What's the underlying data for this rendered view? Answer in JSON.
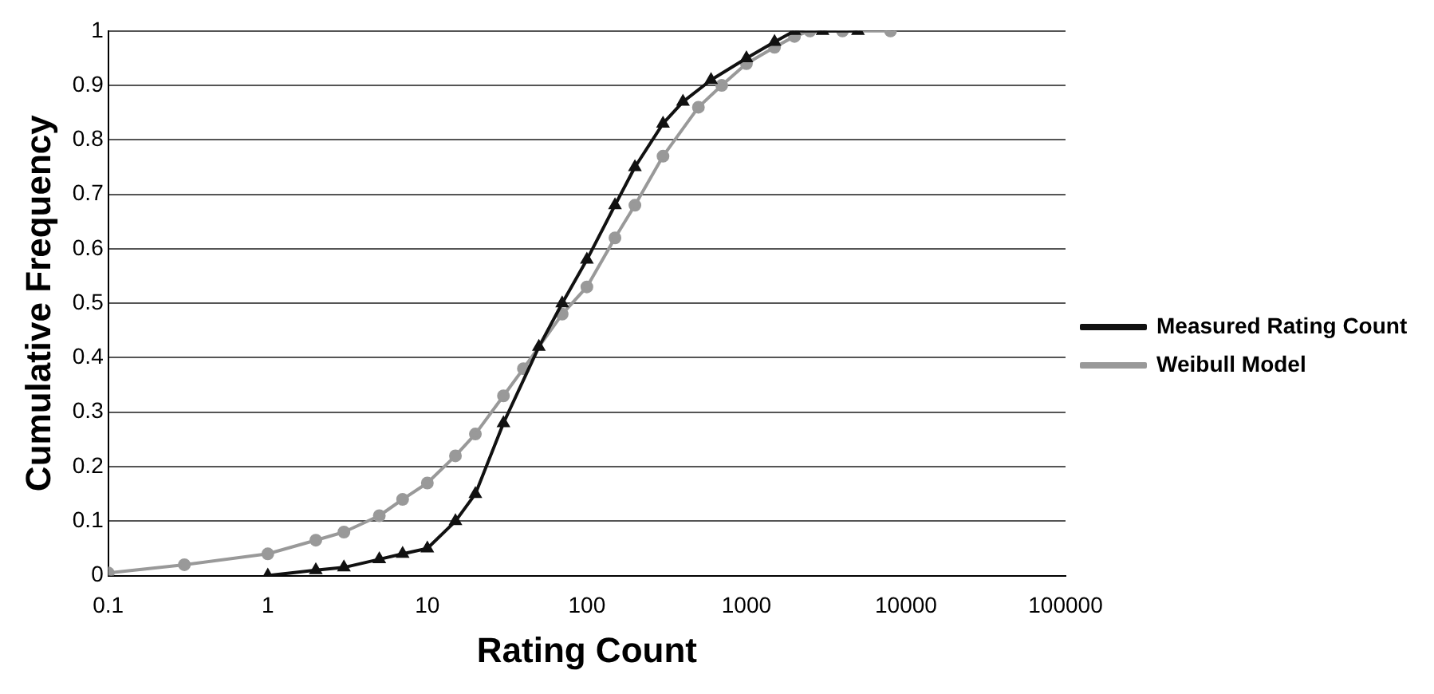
{
  "chart_data": {
    "type": "line",
    "xlabel": "Rating Count",
    "ylabel": "Cumulative Frequency",
    "log": "x",
    "grid": "y",
    "legend": "right",
    "xlim": [
      0.1,
      100000
    ],
    "xticks": [
      0.1,
      1,
      10,
      100,
      1000,
      10000,
      100000
    ],
    "ylim": [
      0,
      1
    ],
    "yticks": [
      0,
      0.1,
      0.2,
      0.3,
      0.4,
      0.5,
      0.6,
      0.7,
      0.8,
      0.9,
      1
    ],
    "series": [
      {
        "name": "Measured Rating Count",
        "color": "#111111",
        "marker": "triangle",
        "x": [
          1,
          2,
          3,
          5,
          7,
          10,
          15,
          20,
          30,
          50,
          70,
          100,
          150,
          200,
          300,
          400,
          600,
          1000,
          1500,
          2000,
          3000,
          5000
        ],
        "values": [
          0,
          0.01,
          0.015,
          0.03,
          0.04,
          0.05,
          0.1,
          0.15,
          0.28,
          0.42,
          0.5,
          0.58,
          0.68,
          0.75,
          0.83,
          0.87,
          0.91,
          0.95,
          0.98,
          1,
          1,
          1
        ]
      },
      {
        "name": "Weibull Model",
        "color": "#999999",
        "marker": "circle",
        "x": [
          0.1,
          0.3,
          1,
          2,
          3,
          5,
          7,
          10,
          15,
          20,
          30,
          40,
          70,
          100,
          150,
          200,
          300,
          500,
          700,
          1000,
          1500,
          2000,
          2500,
          4000,
          8000
        ],
        "values": [
          0.005,
          0.02,
          0.04,
          0.065,
          0.08,
          0.11,
          0.14,
          0.17,
          0.22,
          0.26,
          0.33,
          0.38,
          0.48,
          0.53,
          0.62,
          0.68,
          0.77,
          0.86,
          0.9,
          0.94,
          0.97,
          0.99,
          1,
          1,
          1
        ]
      }
    ]
  }
}
